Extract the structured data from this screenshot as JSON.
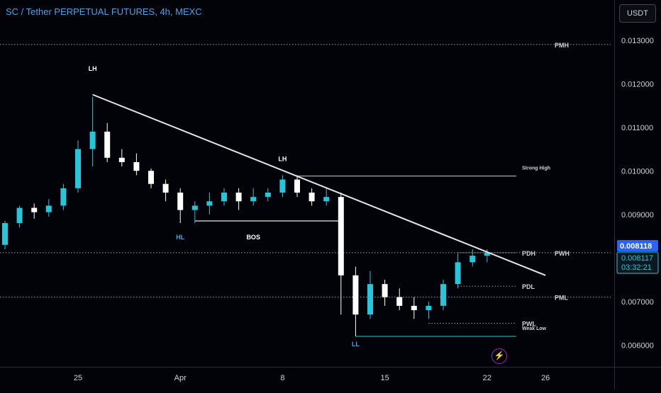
{
  "header": {
    "title": "SC / Tether PERPETUAL FUTURES, 4h, MEXC",
    "currency_button": "USDT"
  },
  "colors": {
    "background": "#020308",
    "up": "#26c6da",
    "down": "#ffffff",
    "trendline": "#e6e6e6",
    "axis_text": "#d1d4dc",
    "last_price_label": "#2962ff",
    "countdown_label": "#26c6da",
    "title": "#4fa3e0"
  },
  "icons": {
    "alert_button": "lightning-icon"
  },
  "chart_data": {
    "type": "candlestick",
    "x_ticks": [
      "25",
      "Apr",
      "8",
      "15",
      "22",
      "26"
    ],
    "y_ticks": [
      "0.013000",
      "0.012000",
      "0.011000",
      "0.010000",
      "0.009000",
      "0.008000",
      "0.007000",
      "0.006000"
    ],
    "ylim": [
      0.0055,
      0.0135
    ],
    "price_labels": {
      "last": "0.008118",
      "current": "0.008117",
      "countdown": "03:32:21"
    },
    "candles": [
      [
        "Mar 19",
        0.00812,
        0.00835,
        0.00793,
        0.0083
      ],
      [
        "Mar 20",
        0.0083,
        0.00885,
        0.0082,
        0.0088
      ],
      [
        "Mar 21",
        0.0088,
        0.0092,
        0.0087,
        0.00915
      ],
      [
        "Mar 22",
        0.00915,
        0.00925,
        0.0089,
        0.00905
      ],
      [
        "Mar 23",
        0.00905,
        0.00935,
        0.00895,
        0.0092
      ],
      [
        "Mar 24",
        0.0092,
        0.0097,
        0.0091,
        0.0096
      ],
      [
        "Mar 25",
        0.0096,
        0.0107,
        0.0095,
        0.0105
      ],
      [
        "Mar 26",
        0.0105,
        0.0117,
        0.0101,
        0.0109
      ],
      [
        "Mar 27",
        0.0109,
        0.0111,
        0.0102,
        0.0103
      ],
      [
        "Mar 28",
        0.0103,
        0.0105,
        0.0101,
        0.0102
      ],
      [
        "Mar 29",
        0.0102,
        0.0104,
        0.0099,
        0.01
      ],
      [
        "Mar 30",
        0.01,
        0.01005,
        0.0096,
        0.0097
      ],
      [
        "Mar 31",
        0.0097,
        0.0098,
        0.0093,
        0.0095
      ],
      [
        "Apr 1",
        0.0095,
        0.0096,
        0.0088,
        0.0091
      ],
      [
        "Apr 2",
        0.0091,
        0.0093,
        0.0088,
        0.0092
      ],
      [
        "Apr 3",
        0.0092,
        0.0095,
        0.009,
        0.0093
      ],
      [
        "Apr 4",
        0.0093,
        0.0096,
        0.0092,
        0.0095
      ],
      [
        "Apr 5",
        0.0095,
        0.0096,
        0.0091,
        0.0093
      ],
      [
        "Apr 6",
        0.0093,
        0.0096,
        0.0092,
        0.0094
      ],
      [
        "Apr 7",
        0.0094,
        0.0096,
        0.0093,
        0.0095
      ],
      [
        "Apr 8",
        0.0095,
        0.0099,
        0.0094,
        0.0098
      ],
      [
        "Apr 9",
        0.0098,
        0.0099,
        0.0094,
        0.0095
      ],
      [
        "Apr 10",
        0.0095,
        0.0096,
        0.0092,
        0.0093
      ],
      [
        "Apr 11",
        0.0093,
        0.0096,
        0.0092,
        0.0094
      ],
      [
        "Apr 12",
        0.0094,
        0.0095,
        0.0067,
        0.0076
      ],
      [
        "Apr 13",
        0.0076,
        0.0078,
        0.0062,
        0.0067
      ],
      [
        "Apr 14",
        0.0067,
        0.0077,
        0.0066,
        0.0074
      ],
      [
        "Apr 15",
        0.0074,
        0.0075,
        0.0069,
        0.0071
      ],
      [
        "Apr 16",
        0.0071,
        0.0073,
        0.0068,
        0.0069
      ],
      [
        "Apr 17",
        0.0069,
        0.0071,
        0.0066,
        0.0068
      ],
      [
        "Apr 18",
        0.0068,
        0.007,
        0.0066,
        0.0069
      ],
      [
        "Apr 19",
        0.0069,
        0.0075,
        0.0068,
        0.0074
      ],
      [
        "Apr 20",
        0.0074,
        0.0081,
        0.0073,
        0.0079
      ],
      [
        "Apr 21",
        0.0079,
        0.0082,
        0.0078,
        0.00805
      ],
      [
        "Apr 22",
        0.00805,
        0.0082,
        0.0079,
        0.00812
      ]
    ],
    "horizontal_levels": [
      {
        "label": "PMH",
        "price": 0.0129,
        "style": "dotted"
      },
      {
        "label": "Strong High",
        "price": 0.00988,
        "style": "solid",
        "x_from": "Apr 9",
        "x_to": "Apr 24"
      },
      {
        "label": "PDH",
        "price": 0.00812,
        "style": "dotted",
        "x_from": "Apr 20",
        "x_to": "Apr 24"
      },
      {
        "label": "PWH",
        "price": 0.00812,
        "style": "dotted"
      },
      {
        "label": "PDL",
        "price": 0.00735,
        "style": "dotted",
        "x_from": "Apr 20",
        "x_to": "Apr 24"
      },
      {
        "label": "PML",
        "price": 0.0071,
        "style": "dotted"
      },
      {
        "label": "PWL",
        "price": 0.0065,
        "style": "dotted",
        "x_from": "Apr 18",
        "x_to": "Apr 24"
      },
      {
        "label": "Weak Low",
        "price": 0.0062,
        "style": "solid",
        "x_from": "Apr 13",
        "x_to": "Apr 24"
      }
    ],
    "structure_labels": [
      {
        "text": "LH",
        "date": "Mar 26",
        "price": 0.0123
      },
      {
        "text": "LH",
        "date": "Apr 8",
        "price": 0.01022
      },
      {
        "text": "HL",
        "date": "Apr 1",
        "price": 0.00843
      },
      {
        "text": "BOS",
        "date": "Apr 6",
        "price": 0.00843
      },
      {
        "text": "HL",
        "date": "Mar 19",
        "price": 0.00775
      },
      {
        "text": "LL",
        "date": "Apr 13",
        "price": 0.00597
      }
    ],
    "bos_line": {
      "from": "Apr 2",
      "to": "Apr 12",
      "price": 0.00885
    },
    "trendline": {
      "from": [
        "Mar 26",
        0.01175
      ],
      "to": [
        "Apr 26",
        0.0076
      ]
    }
  }
}
